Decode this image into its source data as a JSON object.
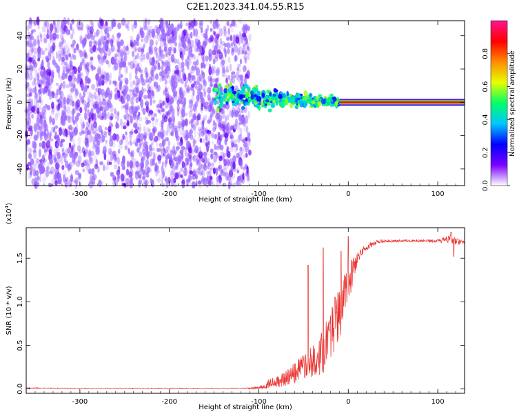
{
  "title": "C2E1.2023.341.04.55.R15",
  "chart_data": [
    {
      "type": "heatmap",
      "panel": "spectrogram",
      "xlabel": "Height of straight line (km)",
      "ylabel": "Frequency (Hz)",
      "xlim": [
        -360,
        130
      ],
      "ylim": [
        -50,
        49
      ],
      "xticks": [
        -300,
        -200,
        -100,
        0,
        100
      ],
      "yticks": [
        -40,
        -20,
        0,
        20,
        40
      ],
      "colorbar": {
        "label": "Normalized spectral amplitude",
        "range": [
          0,
          1
        ],
        "ticks": [
          "0.0",
          "0.2",
          "0.4",
          "0.6",
          "0.8"
        ],
        "tick_values": [
          0.0,
          0.2,
          0.4,
          0.6,
          0.8
        ],
        "colors": [
          "#ffffff",
          "#7a00ff",
          "#0000ff",
          "#00c8ff",
          "#00ff66",
          "#e6ff00",
          "#ff8c00",
          "#ff0000",
          "#ff1493"
        ]
      },
      "regions": [
        {
          "name": "noise",
          "x": [
            -360,
            -110
          ],
          "y": [
            -50,
            49
          ],
          "amplitude": 0.1
        },
        {
          "name": "signal-onset",
          "x": [
            -150,
            -10
          ],
          "freq_center": [
            4,
            0
          ],
          "freq_spread": [
            10,
            3
          ],
          "amplitude": 0.4
        },
        {
          "name": "stable-tone",
          "x": [
            -10,
            130
          ],
          "freq": 0,
          "amplitude": 0.9
        }
      ]
    },
    {
      "type": "line",
      "panel": "snr",
      "xlabel": "Height of straight line (km)",
      "ylabel": "SNR (10 * v/v)",
      "scale_label": "(x10",
      "scale_exp": "4",
      "xlim": [
        -360,
        130
      ],
      "ylim": [
        -0.05,
        1.85
      ],
      "xticks": [
        -300,
        -200,
        -100,
        0,
        100
      ],
      "yticks": [
        "0.0",
        "0.5",
        "1.0",
        "1.5"
      ],
      "ytick_values": [
        0.0,
        0.5,
        1.0,
        1.5
      ],
      "color": "#e8302e",
      "x": [
        -360,
        -300,
        -200,
        -120,
        -100,
        -90,
        -80,
        -70,
        -60,
        -50,
        -40,
        -30,
        -25,
        -20,
        -15,
        -10,
        -5,
        0,
        5,
        10,
        20,
        30,
        40,
        60,
        80,
        100,
        110,
        115,
        120,
        130
      ],
      "y": [
        0.01,
        0.005,
        0.005,
        0.005,
        0.01,
        0.05,
        0.08,
        0.12,
        0.18,
        0.25,
        0.32,
        0.4,
        0.5,
        0.6,
        0.75,
        0.85,
        1.1,
        1.2,
        1.35,
        1.5,
        1.62,
        1.68,
        1.7,
        1.7,
        1.7,
        1.7,
        1.71,
        1.72,
        1.69,
        1.68
      ],
      "noise": [
        0.006,
        0.004,
        0.004,
        0.004,
        0.02,
        0.05,
        0.07,
        0.09,
        0.12,
        0.15,
        0.2,
        0.25,
        0.3,
        0.28,
        0.3,
        0.3,
        0.25,
        0.25,
        0.15,
        0.08,
        0.04,
        0.03,
        0.02,
        0.015,
        0.015,
        0.02,
        0.05,
        0.06,
        0.04,
        0.02
      ],
      "spikes": [
        [
          -45,
          1.42
        ],
        [
          -28,
          1.62
        ],
        [
          -15,
          1.05
        ],
        [
          0,
          1.75
        ],
        [
          -8,
          1.58
        ],
        [
          115,
          1.8
        ],
        [
          118,
          1.52
        ]
      ]
    }
  ]
}
